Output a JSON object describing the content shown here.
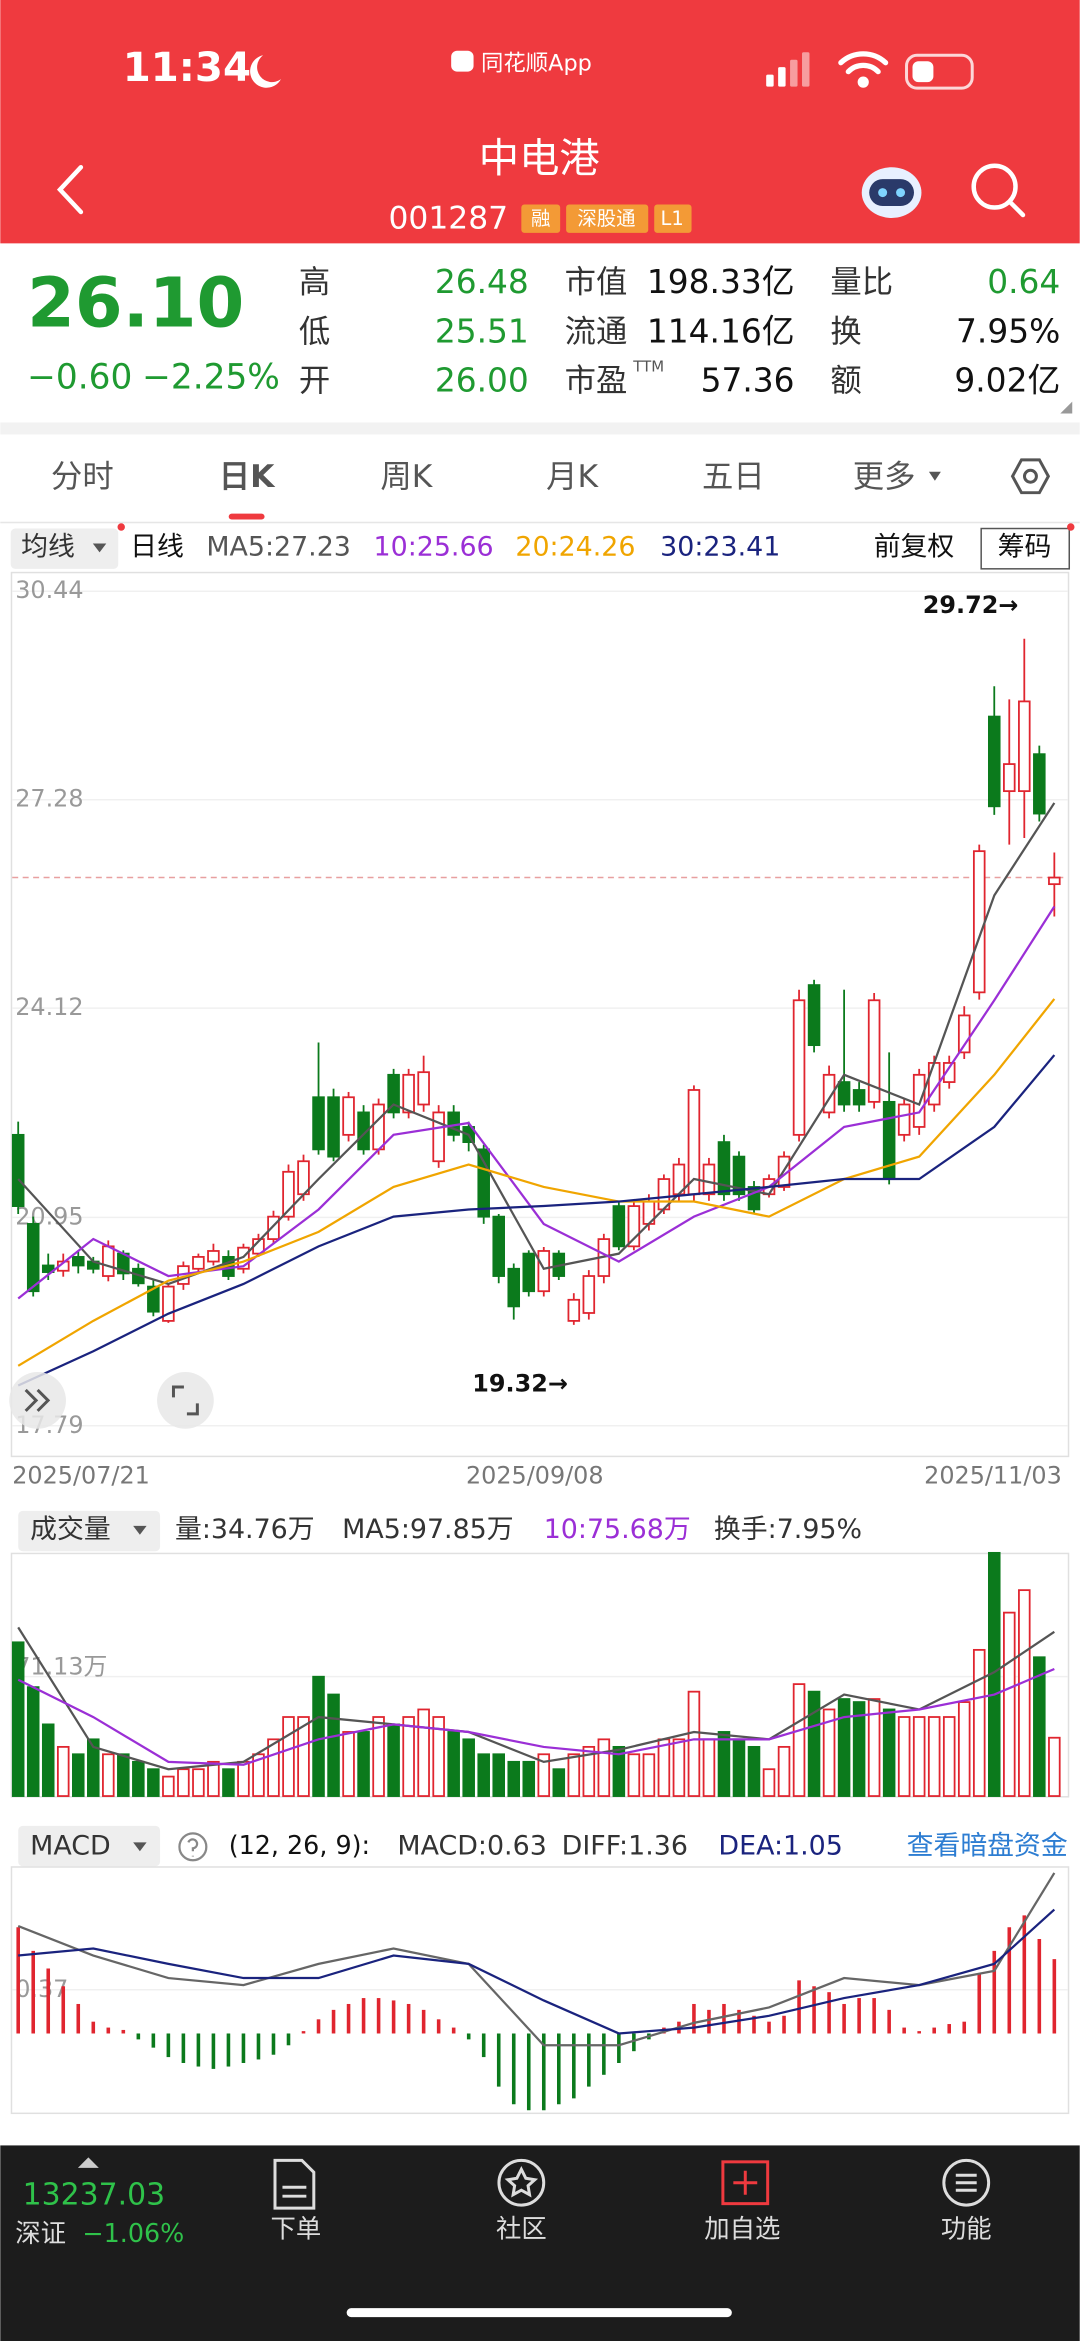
{
  "status_bar": {
    "time": "11:34",
    "app": "同花顺App"
  },
  "header": {
    "title": "中电港",
    "code": "001287",
    "tags": [
      "融",
      "深股通",
      "L1"
    ]
  },
  "quote": {
    "price": "26.10",
    "change": "−0.60",
    "change_pct": "−2.25%",
    "stats": [
      [
        "高",
        "26.48"
      ],
      [
        "低",
        "25.51"
      ],
      [
        "开",
        "26.00"
      ],
      [
        "市值",
        "198.33亿"
      ],
      [
        "流通",
        "114.16亿"
      ],
      [
        "市盈",
        "57.36"
      ],
      [
        "量比",
        "0.64"
      ],
      [
        "换",
        "7.95%"
      ],
      [
        "额",
        "9.02亿"
      ]
    ],
    "pe_note": "TTM"
  },
  "tabs": [
    "分时",
    "日K",
    "周K",
    "月K",
    "五日",
    "更多"
  ],
  "active_tab": 1,
  "kline": {
    "indicator": "均线",
    "period": "日线",
    "adjust": "前复权",
    "chip": "筹码",
    "ma_labels": [
      "MA5:27.23",
      "10:25.66",
      "20:24.26",
      "30:23.41"
    ],
    "ma_colors": [
      "#555555",
      "#9b2fd6",
      "#f0a500",
      "#1a237e"
    ],
    "up_color": "#e0252f",
    "down_color": "#0b7a1c",
    "ylim": [
      17.79,
      30.44
    ],
    "yticks": [
      17.79,
      20.95,
      24.12,
      27.28,
      30.44
    ],
    "dates": [
      "2025/07/21",
      "2025/09/08",
      "2025/11/03"
    ],
    "candles": {
      "open": [
        22.2,
        20.85,
        20.22,
        20.14,
        20.35,
        20.28,
        20.06,
        20.4,
        20.17,
        19.9,
        19.38,
        19.94,
        20.17,
        20.28,
        20.35,
        20.17,
        20.4,
        20.62,
        20.96,
        21.3,
        22.77,
        22.77,
        22.2,
        22.54,
        21.98,
        23.11,
        22.54,
        22.66,
        21.8,
        22.54,
        22.32,
        21.98,
        20.96,
        20.17,
        20.4,
        19.83,
        20.4,
        19.38,
        19.5,
        20.06,
        21.12,
        20.51,
        20.85,
        21.07,
        21.3,
        21.3,
        21.3,
        22.09,
        21.87,
        21.41,
        21.3,
        21.41,
        22.2,
        24.47,
        22.54,
        23.0,
        22.88,
        22.7,
        22.7,
        22.2,
        22.32,
        22.66,
        23.0,
        23.45,
        24.36,
        28.54,
        27.41,
        27.41,
        27.97,
        26.0
      ],
      "close": [
        21.12,
        19.83,
        20.12,
        20.28,
        20.22,
        20.17,
        20.51,
        20.1,
        19.95,
        19.52,
        19.9,
        20.21,
        20.35,
        20.44,
        20.06,
        20.49,
        20.62,
        20.96,
        21.64,
        21.8,
        21.98,
        21.87,
        22.77,
        21.98,
        22.66,
        22.54,
        23.11,
        23.15,
        22.54,
        22.2,
        22.09,
        20.96,
        20.06,
        19.6,
        19.83,
        20.44,
        20.06,
        19.7,
        20.06,
        20.62,
        20.51,
        21.12,
        21.19,
        21.53,
        21.75,
        22.88,
        21.75,
        21.3,
        21.3,
        21.07,
        21.53,
        21.87,
        24.24,
        23.56,
        23.11,
        22.66,
        22.66,
        24.24,
        21.53,
        22.66,
        23.11,
        23.29,
        23.29,
        24.01,
        26.5,
        27.18,
        27.82,
        28.77,
        27.07,
        26.1
      ],
      "high": [
        22.4,
        20.96,
        20.4,
        20.4,
        20.45,
        20.35,
        20.6,
        20.45,
        20.25,
        20.0,
        19.95,
        20.28,
        20.4,
        20.55,
        20.45,
        20.55,
        20.7,
        21.05,
        21.75,
        21.9,
        23.6,
        22.9,
        22.85,
        22.65,
        22.75,
        23.2,
        23.2,
        23.4,
        22.65,
        22.65,
        22.4,
        22.05,
        21.0,
        20.25,
        20.45,
        20.5,
        20.45,
        19.8,
        20.15,
        20.7,
        21.2,
        21.2,
        21.3,
        21.6,
        21.85,
        22.95,
        21.85,
        22.2,
        21.95,
        21.5,
        21.6,
        21.95,
        24.4,
        24.55,
        23.25,
        24.4,
        23.0,
        24.35,
        23.45,
        22.75,
        23.2,
        23.4,
        23.4,
        24.15,
        26.6,
        29.0,
        28.8,
        29.72,
        28.1,
        26.48
      ],
      "low": [
        21.0,
        19.75,
        20.0,
        20.05,
        20.1,
        20.1,
        19.98,
        20.0,
        19.9,
        19.45,
        19.35,
        19.85,
        20.1,
        20.22,
        20.0,
        20.1,
        20.35,
        20.55,
        20.9,
        21.2,
        21.9,
        21.8,
        22.1,
        21.9,
        21.9,
        22.45,
        22.45,
        22.55,
        21.7,
        22.1,
        21.95,
        20.85,
        19.95,
        19.4,
        19.75,
        19.75,
        20.0,
        19.32,
        19.4,
        19.95,
        20.45,
        20.45,
        20.75,
        21.0,
        21.2,
        21.2,
        21.2,
        21.2,
        21.2,
        21.0,
        21.25,
        21.35,
        22.1,
        23.45,
        22.45,
        22.55,
        22.55,
        22.6,
        21.45,
        22.1,
        22.2,
        22.55,
        22.9,
        23.35,
        24.25,
        27.05,
        26.6,
        26.7,
        26.95,
        25.51
      ]
    },
    "ma_index": [
      0,
      5,
      10,
      15,
      20,
      25,
      30,
      35,
      40,
      45,
      50,
      55,
      60,
      65,
      69
    ],
    "ma": [
      [
        21.53,
        20.28,
        19.94,
        20.35,
        21.53,
        22.66,
        22.2,
        20.17,
        20.4,
        21.53,
        21.3,
        23.11,
        22.66,
        25.83,
        27.23
      ],
      [
        19.72,
        20.62,
        20.06,
        20.21,
        21.07,
        22.2,
        22.38,
        20.85,
        20.28,
        20.96,
        21.41,
        22.32,
        22.54,
        24.24,
        25.66
      ],
      [
        18.7,
        19.38,
        19.99,
        20.28,
        20.73,
        21.41,
        21.75,
        21.41,
        21.19,
        21.19,
        20.96,
        21.53,
        21.87,
        23.11,
        24.26
      ],
      [
        18.4,
        18.92,
        19.49,
        19.94,
        20.51,
        20.96,
        21.07,
        21.12,
        21.19,
        21.3,
        21.41,
        21.53,
        21.53,
        22.32,
        23.41
      ]
    ],
    "annotations": [
      {
        "text": "29.72→",
        "index": 67
      },
      {
        "text": "19.32→",
        "index": 37
      }
    ]
  },
  "volume": {
    "indicator": "成交量",
    "labels": [
      "量:34.76万",
      "MA5:97.85万",
      "10:75.68万",
      "换手:7.95%"
    ],
    "label_colors": [
      "#333333",
      "#333333",
      "#9b2fd6",
      "#333333"
    ],
    "ylim": [
      0,
      145
    ],
    "yticks": [
      {
        "value": 71.13,
        "label": "71.13万"
      }
    ],
    "values": [
      91.6,
      64.9,
      42.7,
      29.3,
      24.9,
      33.8,
      24.9,
      24.9,
      20.4,
      16.0,
      11.6,
      16.0,
      16.0,
      20.4,
      16.0,
      20.4,
      24.9,
      33.8,
      47.1,
      47.1,
      71.1,
      60.5,
      38.2,
      38.2,
      47.1,
      42.7,
      47.1,
      51.6,
      47.1,
      38.2,
      33.8,
      24.9,
      24.9,
      20.4,
      20.4,
      24.9,
      16.0,
      24.9,
      29.3,
      33.8,
      29.3,
      24.9,
      24.9,
      33.8,
      33.8,
      62.2,
      33.8,
      38.2,
      33.8,
      29.3,
      16.0,
      29.3,
      66.7,
      62.2,
      51.6,
      57.8,
      56.0,
      57.8,
      51.6,
      47.1,
      47.1,
      47.1,
      47.1,
      56.0,
      87.1,
      144.9,
      109.3,
      122.7,
      82.7,
      34.76
    ],
    "ma": [
      [
        100.5,
        29.3,
        16.0,
        20.4,
        47.1,
        42.7,
        38.2,
        20.4,
        27.6,
        38.2,
        33.8,
        60.5,
        51.6,
        73.8,
        97.85
      ],
      [
        69.3,
        47.1,
        20.4,
        18.7,
        33.8,
        42.7,
        38.2,
        29.3,
        24.9,
        33.8,
        33.8,
        47.1,
        51.6,
        60.5,
        75.68
      ]
    ],
    "ma_colors": [
      "#555555",
      "#9b2fd6"
    ]
  },
  "macd": {
    "name": "MACD",
    "params": "(12, 26, 9):",
    "labels": [
      "MACD:0.63",
      "DIFF:1.36",
      "DEA:1.05"
    ],
    "label_colors": [
      "#333333",
      "#333333",
      "#1a237e"
    ],
    "link": "查看暗盘资金",
    "ylim": [
      -0.67,
      1.48
    ],
    "yticks": [
      0.37
    ],
    "hist": [
      0.9,
      0.7,
      0.55,
      0.4,
      0.25,
      0.1,
      0.05,
      0.03,
      -0.05,
      -0.12,
      -0.2,
      -0.25,
      -0.28,
      -0.3,
      -0.28,
      -0.25,
      -0.22,
      -0.18,
      -0.1,
      0.02,
      0.12,
      0.2,
      0.25,
      0.3,
      0.3,
      0.28,
      0.25,
      0.2,
      0.12,
      0.05,
      -0.05,
      -0.2,
      -0.45,
      -0.6,
      -0.65,
      -0.65,
      -0.6,
      -0.55,
      -0.45,
      -0.35,
      -0.25,
      -0.15,
      -0.05,
      0.05,
      0.1,
      0.25,
      0.2,
      0.25,
      0.2,
      0.15,
      0.1,
      0.15,
      0.45,
      0.4,
      0.35,
      0.25,
      0.3,
      0.3,
      0.2,
      0.05,
      0.02,
      0.05,
      0.08,
      0.1,
      0.5,
      0.7,
      0.9,
      1.0,
      0.8,
      0.63
    ],
    "diff": [
      0.91,
      0.66,
      0.47,
      0.41,
      0.59,
      0.72,
      0.59,
      -0.1,
      -0.1,
      0.09,
      0.22,
      0.47,
      0.41,
      0.53,
      1.36
    ],
    "dea": [
      0.66,
      0.72,
      0.59,
      0.47,
      0.47,
      0.66,
      0.59,
      0.28,
      0.0,
      0.05,
      0.15,
      0.3,
      0.41,
      0.59,
      1.05
    ],
    "line_colors": [
      "#666666",
      "#1a237e"
    ]
  },
  "bottom_bar": {
    "index_value": "13237.03",
    "index_name": "深证",
    "index_change": "−1.06%",
    "nav": [
      "下单",
      "社区",
      "加自选",
      "功能"
    ]
  }
}
